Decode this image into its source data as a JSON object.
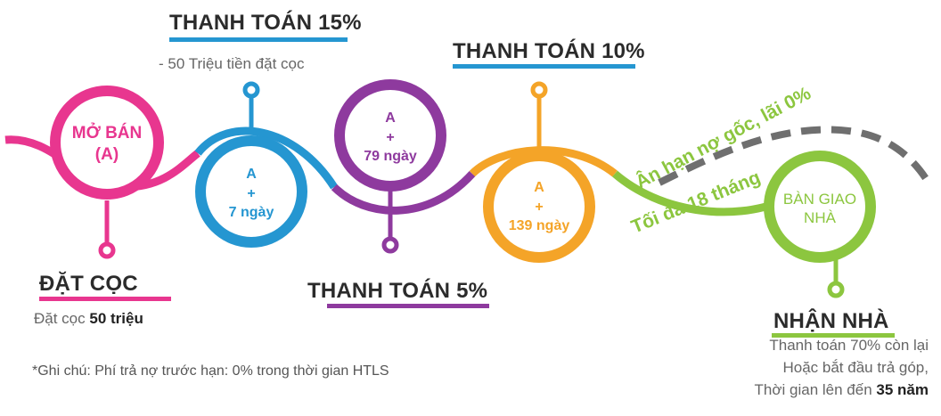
{
  "colors": {
    "pink": "#e8368f",
    "blue": "#2596d1",
    "purple": "#8e3a9e",
    "orange": "#f4a428",
    "green": "#8cc63f",
    "gray": "#6f6f6f",
    "text_dark": "#2b2b2b"
  },
  "steps": {
    "dat_coc": {
      "circle_line1": "MỞ BÁN",
      "circle_line2": "(A)",
      "heading": "ĐẶT CỌC",
      "sub_prefix": "Đặt cọc ",
      "sub_bold": "50 triệu"
    },
    "pay15": {
      "circle_line1": "A",
      "circle_line2": "+",
      "circle_line3": "7 ngày",
      "heading": "THANH TOÁN 15%",
      "sub": "- 50 Triệu tiền đặt cọc"
    },
    "pay5": {
      "circle_line1": "A",
      "circle_line2": "+",
      "circle_line3": "79 ngày",
      "heading": "THANH TOÁN 5%"
    },
    "pay10": {
      "circle_line1": "A",
      "circle_line2": "+",
      "circle_line3": "139 ngày",
      "heading": "THANH TOÁN 10%"
    },
    "grace": {
      "line1": "Ân hạn nợ gốc, lãi 0%",
      "line2": "Tối đa 18 tháng"
    },
    "handover": {
      "circle_line1": "BÀN GIAO",
      "circle_line2": "NHÀ",
      "heading": "NHẬN NHÀ",
      "line1": "Thanh toán 70% còn lại",
      "line2": "Hoặc bắt đầu trả góp,",
      "line3_prefix": "Thời gian lên đến ",
      "line3_bold": "35 năm"
    }
  },
  "note": "*Ghi chú: Phí trả nợ trước hạn: 0% trong thời gian HTLS"
}
